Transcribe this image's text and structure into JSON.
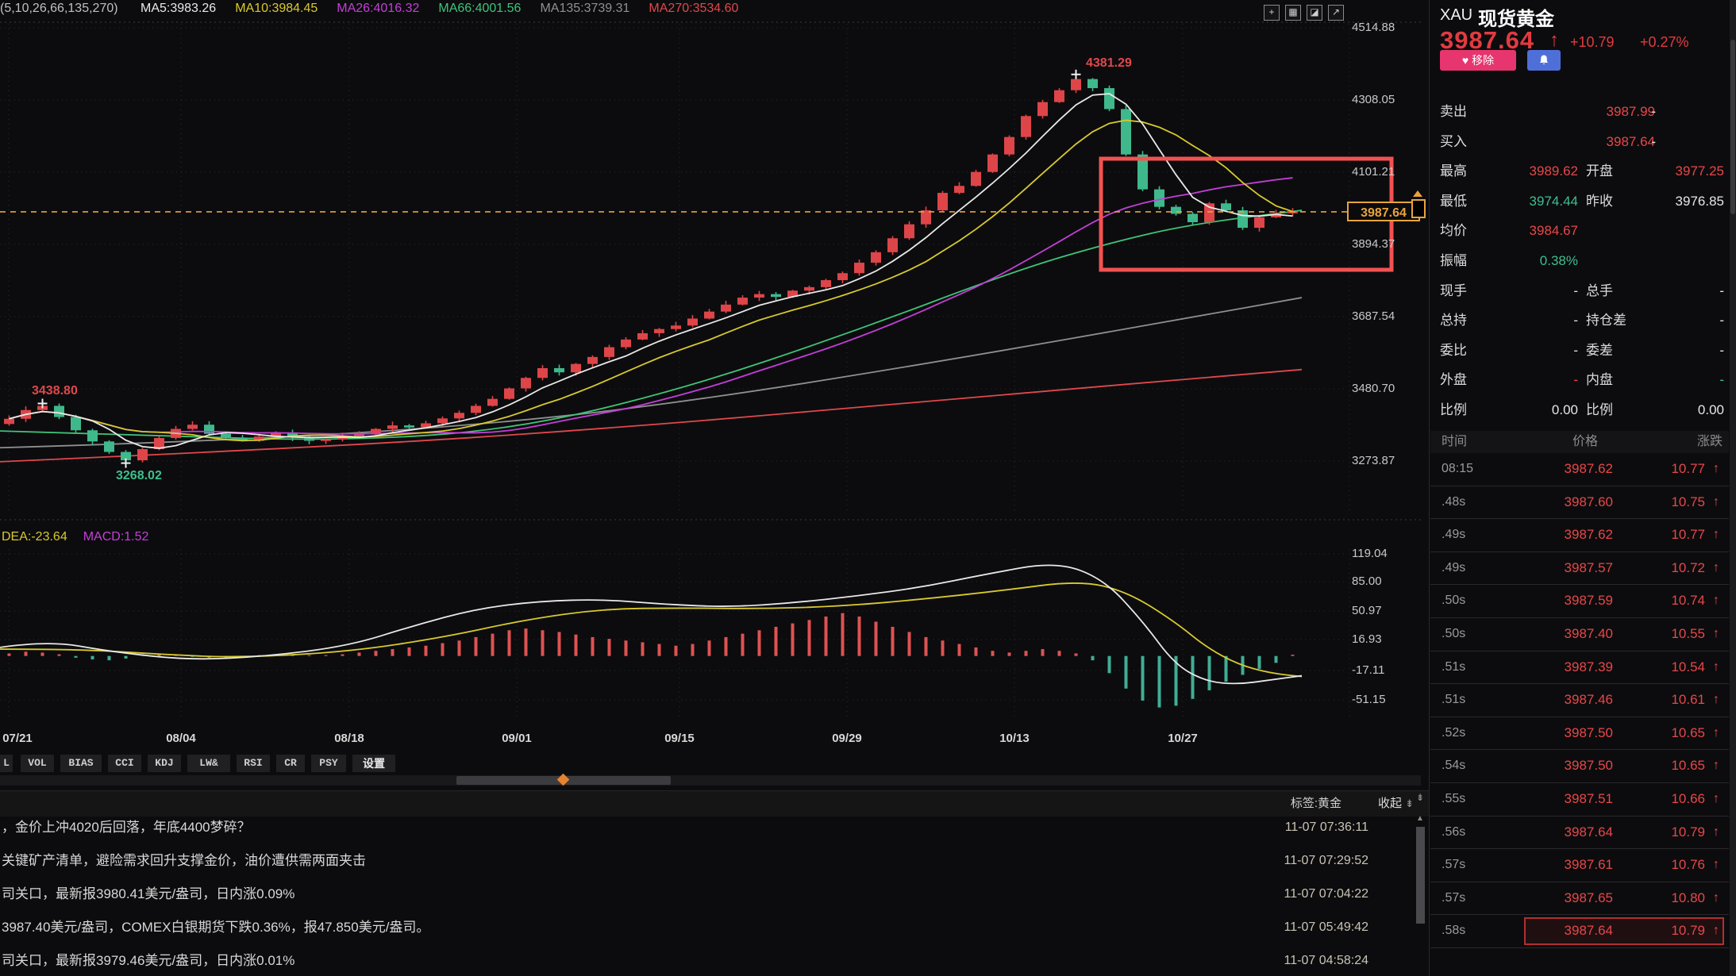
{
  "chart": {
    "ma_settings": "(5,10,26,66,135,270)",
    "ma_items": [
      {
        "label": "MA5:3983.26",
        "color": "#e8e8e8"
      },
      {
        "label": "MA10:3984.45",
        "color": "#d8c92f"
      },
      {
        "label": "MA26:4016.32",
        "color": "#c43fd8"
      },
      {
        "label": "MA66:4001.56",
        "color": "#3fc478"
      },
      {
        "label": "MA135:3739.31",
        "color": "#8f8f8f"
      },
      {
        "label": "MA270:3534.60",
        "color": "#e0484d"
      }
    ],
    "macd_items": [
      {
        "label": "DEA:-23.64",
        "color": "#d8c92f"
      },
      {
        "label": "MACD:1.52",
        "color": "#c43fd8"
      }
    ],
    "price_axis": [
      "4514.88",
      "4308.05",
      "4101.21",
      "3894.37",
      "3687.54",
      "3480.70",
      "3273.87"
    ],
    "macd_axis": [
      "119.04",
      "85.00",
      "50.97",
      "16.93",
      "-17.11",
      "-51.15"
    ],
    "dates": [
      "07/21",
      "08/04",
      "08/18",
      "09/01",
      "09/15",
      "09/29",
      "10/13",
      "10/27"
    ],
    "current_price": "3987.64",
    "annotations": {
      "peak": "4381.29",
      "left_high": "3438.80",
      "left_low": "3268.02"
    }
  },
  "chart_data": {
    "type": "candlestick",
    "ylim": [
      3273.87,
      4514.88
    ],
    "price_ticks": [
      4514.88,
      4308.05,
      4101.21,
      3894.37,
      3687.54,
      3480.7,
      3273.87
    ],
    "closes": [
      3395,
      3420,
      3432,
      3400,
      3362,
      3330,
      3300,
      3276,
      3308,
      3340,
      3366,
      3378,
      3352,
      3340,
      3332,
      3344,
      3356,
      3342,
      3332,
      3336,
      3346,
      3352,
      3366,
      3376,
      3370,
      3382,
      3396,
      3412,
      3432,
      3452,
      3482,
      3512,
      3540,
      3528,
      3552,
      3572,
      3600,
      3622,
      3640,
      3652,
      3662,
      3682,
      3702,
      3722,
      3742,
      3752,
      3744,
      3762,
      3772,
      3792,
      3812,
      3842,
      3872,
      3912,
      3952,
      3992,
      4042,
      4062,
      4102,
      4152,
      4202,
      4262,
      4302,
      4336,
      4368,
      4342,
      4282,
      4152,
      4052,
      4002,
      3982,
      3958,
      4012,
      3992,
      3942,
      3972,
      3984,
      3988
    ],
    "special": {
      "peak_high": 4381.29,
      "peak_index": 64,
      "low": 3268.02,
      "low_index": 7
    },
    "ma_overlays": {
      "ma66": [
        [
          0,
          3360
        ],
        [
          200,
          3345
        ],
        [
          440,
          3332
        ],
        [
          650,
          3365
        ],
        [
          860,
          3480
        ],
        [
          1070,
          3640
        ],
        [
          1280,
          3820
        ],
        [
          1400,
          3900
        ],
        [
          1500,
          3952
        ],
        [
          1640,
          3992
        ]
      ],
      "ma135": [
        [
          0,
          3312
        ],
        [
          300,
          3332
        ],
        [
          650,
          3385
        ],
        [
          900,
          3455
        ],
        [
          1200,
          3565
        ],
        [
          1500,
          3685
        ],
        [
          1640,
          3742
        ]
      ],
      "ma270": [
        [
          0,
          3272
        ],
        [
          400,
          3312
        ],
        [
          800,
          3372
        ],
        [
          1200,
          3452
        ],
        [
          1640,
          3536
        ]
      ]
    },
    "macd": {
      "axis": [
        119.04,
        85.0,
        50.97,
        16.93,
        -17.11,
        -51.15
      ],
      "hist": [
        3,
        5,
        4,
        2,
        -2,
        -4,
        -5,
        -3,
        2,
        3,
        2,
        -1,
        -2,
        -2,
        -1,
        1,
        2,
        2,
        1,
        1,
        2,
        4,
        6,
        8,
        10,
        12,
        15,
        18,
        22,
        26,
        30,
        32,
        30,
        28,
        25,
        22,
        20,
        18,
        16,
        14,
        12,
        14,
        18,
        22,
        26,
        30,
        34,
        38,
        42,
        46,
        50,
        46,
        40,
        34,
        28,
        22,
        18,
        14,
        10,
        6,
        4,
        6,
        8,
        6,
        3,
        -5,
        -20,
        -38,
        -52,
        -60,
        -58,
        -50,
        -40,
        -30,
        -22,
        -15,
        -8,
        1.5
      ],
      "dif": [
        [
          0,
          10
        ],
        [
          60,
          18
        ],
        [
          140,
          5
        ],
        [
          240,
          -5
        ],
        [
          340,
          0
        ],
        [
          440,
          12
        ],
        [
          520,
          35
        ],
        [
          600,
          55
        ],
        [
          680,
          64
        ],
        [
          760,
          66
        ],
        [
          840,
          60
        ],
        [
          920,
          57
        ],
        [
          1000,
          62
        ],
        [
          1080,
          70
        ],
        [
          1160,
          80
        ],
        [
          1240,
          95
        ],
        [
          1330,
          110
        ],
        [
          1390,
          90
        ],
        [
          1440,
          40
        ],
        [
          1480,
          -10
        ],
        [
          1520,
          -30
        ],
        [
          1560,
          -33
        ],
        [
          1600,
          -28
        ],
        [
          1640,
          -23
        ]
      ],
      "dea": [
        [
          0,
          8
        ],
        [
          100,
          8
        ],
        [
          200,
          2
        ],
        [
          300,
          -2
        ],
        [
          440,
          5
        ],
        [
          560,
          22
        ],
        [
          660,
          42
        ],
        [
          760,
          55
        ],
        [
          860,
          56
        ],
        [
          960,
          55
        ],
        [
          1060,
          58
        ],
        [
          1160,
          66
        ],
        [
          1260,
          76
        ],
        [
          1360,
          88
        ],
        [
          1420,
          75
        ],
        [
          1480,
          40
        ],
        [
          1520,
          10
        ],
        [
          1560,
          -10
        ],
        [
          1600,
          -20
        ],
        [
          1640,
          -24
        ]
      ]
    },
    "colors": {
      "up": "#de4549",
      "down": "#3fb98c",
      "ma5": "#e8e8e8",
      "ma10": "#d8c92f",
      "ma26": "#c43fd8",
      "ma66": "#3fc478",
      "ma135": "#8f8f8f",
      "ma270": "#e0484d",
      "histPos": "#e05252",
      "histNeg": "#3fae96",
      "dif": "#e8e8e8",
      "dea": "#d8c92f",
      "annotation_box": "#f25252",
      "price_line": "#e8a33d",
      "grid": "#2b2b30"
    }
  },
  "toolbar_icons": [
    {
      "name": "pan-icon",
      "glyph": "+"
    },
    {
      "name": "grid-icon",
      "glyph": "▦"
    },
    {
      "name": "chart-style-icon",
      "glyph": "◪"
    },
    {
      "name": "export-icon",
      "glyph": "↗"
    }
  ],
  "tabs": [
    "L",
    "VOL",
    "BIAS",
    "CCI",
    "KDJ",
    "LW&",
    "RSI",
    "CR",
    "PSY",
    "设置"
  ],
  "news": {
    "tag": "标签:黄金",
    "collapse": "收起",
    "collapse_icon": "⇟",
    "items": [
      {
        "text": "，金价上冲4020后回落，年底4400梦碎？",
        "time": "11-07 07:36:11"
      },
      {
        "text": "关键矿产清单，避险需求回升支撑金价，油价遭供需两面夹击",
        "time": "11-07 07:29:52"
      },
      {
        "text": "司关口，最新报3980.41美元/盎司，日内涨0.09%",
        "time": "11-07 07:04:22"
      },
      {
        "text": "3987.40美元/盎司，COMEX白银期货下跌0.36%，报47.850美元/盎司。",
        "time": "11-07 05:49:42"
      },
      {
        "text": "司关口，最新报3979.46美元/盎司，日内涨0.01%",
        "time": "11-07 04:58:24"
      }
    ]
  },
  "panel": {
    "symbol": "XAU",
    "name": "现货黄金",
    "price": "3987.64",
    "arrow": "↑",
    "change": "+10.79",
    "pct": "+0.27%",
    "heart": "♥",
    "remove_label": "移除",
    "rows": [
      {
        "l": "卖出",
        "lv": "3987.99",
        "lc": "red",
        "r": "",
        "rv": "-",
        "rc": "white",
        "wide": true
      },
      {
        "l": "买入",
        "lv": "3987.64",
        "lc": "red",
        "r": "",
        "rv": "-",
        "rc": "white",
        "wide": true
      },
      {
        "l": "最高",
        "lv": "3989.62",
        "lc": "red",
        "r": "开盘",
        "rv": "3977.25",
        "rc": "red"
      },
      {
        "l": "最低",
        "lv": "3974.44",
        "lc": "green",
        "r": "昨收",
        "rv": "3976.85",
        "rc": "white"
      },
      {
        "l": "均价",
        "lv": "3984.67",
        "lc": "red",
        "r": "",
        "rv": "",
        "rc": "white"
      },
      {
        "l": "振幅",
        "lv": "0.38%",
        "lc": "green",
        "r": "",
        "rv": "",
        "rc": "white"
      },
      {
        "l": "现手",
        "lv": "-",
        "lc": "white",
        "r": "总手",
        "rv": "-",
        "rc": "white"
      },
      {
        "l": "总持",
        "lv": "-",
        "lc": "white",
        "r": "持仓差",
        "rv": "-",
        "rc": "white"
      },
      {
        "l": "委比",
        "lv": "-",
        "lc": "white",
        "r": "委差",
        "rv": "-",
        "rc": "white"
      },
      {
        "l": "外盘",
        "lv": "-",
        "lc": "red",
        "r": "内盘",
        "rv": "-",
        "rc": "green"
      },
      {
        "l": "比例",
        "lv": "0.00",
        "lc": "white",
        "r": "比例",
        "rv": "0.00",
        "rc": "white"
      }
    ],
    "table_header": [
      "时间",
      "价格",
      "涨跌"
    ],
    "up_arrow": "↑",
    "ticks": [
      {
        "t": "08:15",
        "p": "3987.62",
        "c": "10.77",
        "tc": "orange"
      },
      {
        "t": ".48s",
        "p": "3987.60",
        "c": "10.75"
      },
      {
        "t": ".49s",
        "p": "3987.62",
        "c": "10.77"
      },
      {
        "t": ".49s",
        "p": "3987.57",
        "c": "10.72"
      },
      {
        "t": ".50s",
        "p": "3987.59",
        "c": "10.74"
      },
      {
        "t": ".50s",
        "p": "3987.40",
        "c": "10.55"
      },
      {
        "t": ".51s",
        "p": "3987.39",
        "c": "10.54"
      },
      {
        "t": ".51s",
        "p": "3987.46",
        "c": "10.61"
      },
      {
        "t": ".52s",
        "p": "3987.50",
        "c": "10.65"
      },
      {
        "t": ".54s",
        "p": "3987.50",
        "c": "10.65"
      },
      {
        "t": ".55s",
        "p": "3987.51",
        "c": "10.66"
      },
      {
        "t": ".56s",
        "p": "3987.64",
        "c": "10.79"
      },
      {
        "t": ".57s",
        "p": "3987.61",
        "c": "10.76"
      },
      {
        "t": ".57s",
        "p": "3987.65",
        "c": "10.80"
      },
      {
        "t": ".58s",
        "p": "3987.64",
        "c": "10.79",
        "hl": true
      }
    ]
  }
}
